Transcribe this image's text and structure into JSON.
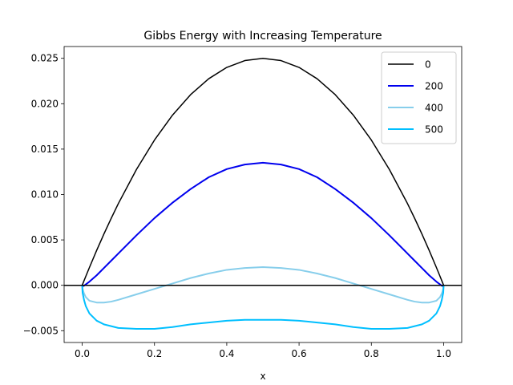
{
  "chart_data": {
    "type": "line",
    "title": "Gibbs Energy with Increasing Temperature",
    "xlabel": "x",
    "ylabel": "",
    "xlim": [
      -0.05,
      1.05
    ],
    "ylim": [
      -0.0063,
      0.0263
    ],
    "x_ticks": [
      0.0,
      0.2,
      0.4,
      0.6,
      0.8,
      1.0
    ],
    "x_tick_labels": [
      "0.0",
      "0.2",
      "0.4",
      "0.6",
      "0.8",
      "1.0"
    ],
    "y_ticks": [
      -0.005,
      0.0,
      0.005,
      0.01,
      0.015,
      0.02,
      0.025
    ],
    "y_tick_labels": [
      "−0.005",
      "0.000",
      "0.005",
      "0.010",
      "0.015",
      "0.020",
      "0.025"
    ],
    "grid": false,
    "legend": "top-right",
    "reference_line": {
      "y": 0.0,
      "color": "#000000"
    },
    "x": [
      0.0,
      0.001,
      0.005,
      0.01,
      0.02,
      0.04,
      0.06,
      0.08,
      0.1,
      0.15,
      0.2,
      0.25,
      0.3,
      0.35,
      0.4,
      0.45,
      0.5,
      0.55,
      0.6,
      0.65,
      0.7,
      0.75,
      0.8,
      0.85,
      0.9,
      0.92,
      0.94,
      0.96,
      0.98,
      0.99,
      0.995,
      0.999,
      1.0
    ],
    "series": [
      {
        "name": "0",
        "color": "#000000",
        "values": [
          0.0,
          0.0001,
          0.000495,
          0.00099,
          0.00196,
          0.00384,
          0.00564,
          0.00736,
          0.009,
          0.01275,
          0.016,
          0.01875,
          0.021,
          0.02275,
          0.024,
          0.02475,
          0.025,
          0.02475,
          0.024,
          0.02275,
          0.021,
          0.01875,
          0.016,
          0.01275,
          0.009,
          0.00736,
          0.00564,
          0.00384,
          0.00196,
          0.00099,
          0.000495,
          0.0001,
          0.0
        ]
      },
      {
        "name": "200",
        "color": "#0000ee",
        "values": [
          0.0,
          -0.0001,
          -5e-05,
          0.0001,
          0.0004,
          0.0011,
          0.0019,
          0.0027,
          0.0035,
          0.0055,
          0.0074,
          0.0091,
          0.0106,
          0.0119,
          0.0128,
          0.0133,
          0.0135,
          0.0133,
          0.0128,
          0.0119,
          0.0106,
          0.0091,
          0.0074,
          0.0055,
          0.0035,
          0.0027,
          0.0019,
          0.0011,
          0.0004,
          0.0001,
          -5e-05,
          -0.0001,
          0.0
        ]
      },
      {
        "name": "400",
        "color": "#87ceeb",
        "values": [
          0.0,
          -0.0004,
          -0.0009,
          -0.0013,
          -0.0017,
          -0.0019,
          -0.0019,
          -0.0018,
          -0.0016,
          -0.001,
          -0.0004,
          0.0002,
          0.0008,
          0.0013,
          0.0017,
          0.0019,
          0.002,
          0.0019,
          0.0017,
          0.0013,
          0.0008,
          0.0002,
          -0.0004,
          -0.001,
          -0.0016,
          -0.0018,
          -0.0019,
          -0.0019,
          -0.0017,
          -0.0013,
          -0.0009,
          -0.0004,
          0.0
        ]
      },
      {
        "name": "500",
        "color": "#00bfff",
        "values": [
          0.0,
          -0.0008,
          -0.0016,
          -0.0023,
          -0.0031,
          -0.0039,
          -0.0043,
          -0.0045,
          -0.0047,
          -0.0048,
          -0.0048,
          -0.0046,
          -0.0043,
          -0.0041,
          -0.0039,
          -0.0038,
          -0.0038,
          -0.0038,
          -0.0039,
          -0.0041,
          -0.0043,
          -0.0046,
          -0.0048,
          -0.0048,
          -0.0047,
          -0.0045,
          -0.0043,
          -0.0039,
          -0.0031,
          -0.0023,
          -0.0016,
          -0.0008,
          0.0
        ]
      }
    ]
  }
}
